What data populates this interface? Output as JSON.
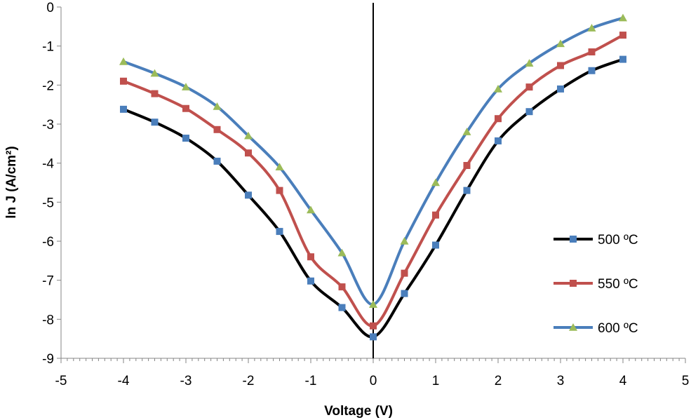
{
  "chart_data": {
    "type": "line",
    "title": "",
    "xlabel": "Voltage (V)",
    "ylabel": "ln J (A/cm²)",
    "xlim": [
      -5,
      5
    ],
    "ylim": [
      -9,
      0
    ],
    "xticks": [
      "-5",
      "-4",
      "-3",
      "-2",
      "-1",
      "0",
      "1",
      "2",
      "3",
      "4",
      "5"
    ],
    "yticks": [
      "0",
      "-1",
      "-2",
      "-3",
      "-4",
      "-5",
      "-6",
      "-7",
      "-8",
      "-9"
    ],
    "grid": false,
    "legend_position": "right",
    "x": [
      -4,
      -3.5,
      -3,
      -2.5,
      -2,
      -1.5,
      -1,
      -0.5,
      0,
      0.5,
      1,
      1.5,
      2,
      2.5,
      3,
      3.5,
      4
    ],
    "series": [
      {
        "name": "500 ºC",
        "line_color": "#000000",
        "marker": "square",
        "marker_color": "#4a7ebb",
        "values": [
          -2.62,
          -2.95,
          -3.36,
          -3.95,
          -4.82,
          -5.75,
          -7.02,
          -7.7,
          -8.45,
          -7.34,
          -6.1,
          -4.7,
          -3.43,
          -2.68,
          -2.1,
          -1.63,
          -1.34
        ]
      },
      {
        "name": "550 ºC",
        "line_color": "#c0504d",
        "marker": "square",
        "marker_color": "#c0504d",
        "values": [
          -1.9,
          -2.22,
          -2.6,
          -3.14,
          -3.74,
          -4.7,
          -6.4,
          -7.17,
          -8.17,
          -6.82,
          -5.33,
          -4.06,
          -2.86,
          -2.05,
          -1.5,
          -1.15,
          -0.72
        ]
      },
      {
        "name": "600 ºC",
        "line_color": "#4a7ebb",
        "marker": "triangle",
        "marker_color": "#9bbb59",
        "values": [
          -1.4,
          -1.7,
          -2.05,
          -2.55,
          -3.3,
          -4.1,
          -5.2,
          -6.3,
          -7.62,
          -6.0,
          -4.5,
          -3.2,
          -2.1,
          -1.44,
          -0.94,
          -0.54,
          -0.28
        ]
      }
    ]
  }
}
